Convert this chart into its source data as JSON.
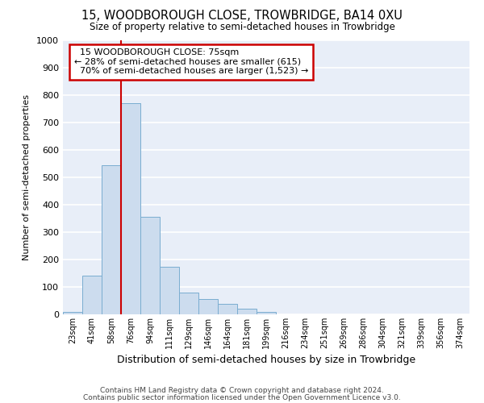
{
  "title": "15, WOODBOROUGH CLOSE, TROWBRIDGE, BA14 0XU",
  "subtitle": "Size of property relative to semi-detached houses in Trowbridge",
  "xlabel": "Distribution of semi-detached houses by size in Trowbridge",
  "ylabel": "Number of semi-detached properties",
  "footnote1": "Contains HM Land Registry data © Crown copyright and database right 2024.",
  "footnote2": "Contains public sector information licensed under the Open Government Licence v3.0.",
  "bin_labels": [
    "23sqm",
    "41sqm",
    "58sqm",
    "76sqm",
    "94sqm",
    "111sqm",
    "129sqm",
    "146sqm",
    "164sqm",
    "181sqm",
    "199sqm",
    "216sqm",
    "234sqm",
    "251sqm",
    "269sqm",
    "286sqm",
    "304sqm",
    "321sqm",
    "339sqm",
    "356sqm",
    "374sqm"
  ],
  "bar_heights": [
    10,
    140,
    545,
    770,
    355,
    175,
    80,
    55,
    37,
    20,
    10,
    0,
    0,
    0,
    0,
    0,
    0,
    0,
    0,
    0,
    0
  ],
  "bar_color": "#ccdcee",
  "bar_edge_color": "#7aadd0",
  "bg_color": "#e8eef8",
  "grid_color": "#ffffff",
  "fig_bg_color": "#ffffff",
  "property_label": "15 WOODBOROUGH CLOSE: 75sqm",
  "pct_smaller": 28,
  "pct_larger": 70,
  "n_smaller": 615,
  "n_larger": 1523,
  "ann_box_color": "#cc0000",
  "vline_color": "#cc0000",
  "vline_x": 2.5,
  "ylim": [
    0,
    1000
  ],
  "yticks": [
    0,
    100,
    200,
    300,
    400,
    500,
    600,
    700,
    800,
    900,
    1000
  ]
}
